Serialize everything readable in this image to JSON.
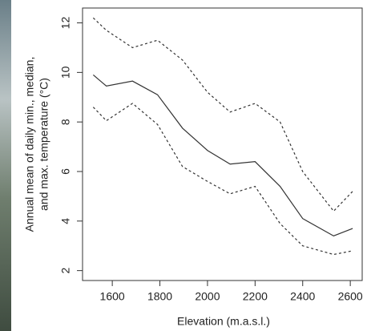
{
  "chart_data": {
    "type": "line",
    "x": [
      1520,
      1575,
      1685,
      1790,
      1895,
      2000,
      2095,
      2200,
      2305,
      2400,
      2530,
      2610
    ],
    "series": [
      {
        "color": "#333333",
        "dashed": true,
        "values": [
          12.2,
          11.7,
          11.0,
          11.3,
          10.5,
          9.2,
          8.4,
          8.75,
          8.0,
          6.0,
          4.4,
          5.2
        ]
      },
      {
        "color": "#333333",
        "dashed": false,
        "values": [
          9.9,
          9.45,
          9.65,
          9.1,
          7.75,
          6.85,
          6.3,
          6.4,
          5.4,
          4.1,
          3.4,
          3.7
        ]
      },
      {
        "color": "#333333",
        "dashed": true,
        "values": [
          8.6,
          8.05,
          8.75,
          7.9,
          6.2,
          5.6,
          5.1,
          5.4,
          3.9,
          3.0,
          2.65,
          2.8
        ]
      }
    ],
    "xlabel": "Elevation (m.a.s.l.)",
    "ylabel": [
      "Annual mean of daily min., median,",
      "and max. temperature (°C)"
    ],
    "xlim": [
      1475,
      2650
    ],
    "ylim": [
      1.6,
      12.6
    ],
    "xticks": [
      1600,
      1800,
      2000,
      2200,
      2400,
      2600
    ],
    "yticks": [
      2,
      4,
      6,
      8,
      10,
      12
    ]
  }
}
